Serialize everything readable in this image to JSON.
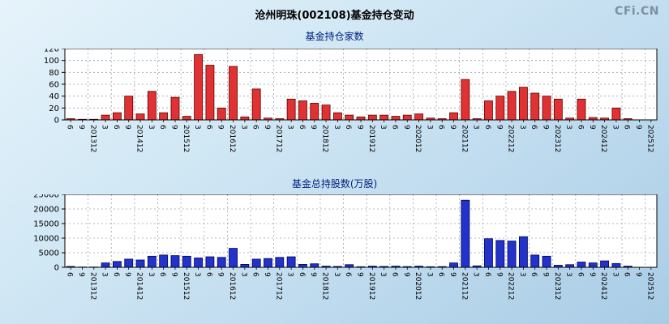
{
  "header": {
    "title": "沧州明珠(002108)基金持仓变动",
    "logo": "CFi.CN"
  },
  "chart_data": [
    {
      "type": "bar",
      "title": "基金持仓家数",
      "legend_position": "none",
      "grid": true,
      "ylim": [
        0,
        120
      ],
      "yticks": [
        0,
        20,
        40,
        60,
        80,
        100,
        120
      ],
      "bar_color": "#e03232",
      "bar_stroke": "#5a0000",
      "categories": [
        "6",
        "9",
        "201312",
        "3",
        "6",
        "9",
        "201412",
        "3",
        "6",
        "9",
        "201512",
        "3",
        "6",
        "9",
        "201612",
        "3",
        "6",
        "9",
        "201712",
        "3",
        "6",
        "9",
        "201812",
        "3",
        "6",
        "9",
        "201912",
        "3",
        "6",
        "9",
        "202012",
        "3",
        "6",
        "9",
        "202112",
        "3",
        "6",
        "9",
        "202212",
        "3",
        "6",
        "9",
        "202312",
        "3",
        "6",
        "9",
        "202412",
        "3",
        "6",
        "9",
        "202512"
      ],
      "values": [
        2,
        1,
        1,
        8,
        12,
        40,
        10,
        48,
        12,
        38,
        6,
        110,
        92,
        20,
        90,
        5,
        52,
        3,
        2,
        35,
        32,
        28,
        25,
        12,
        8,
        5,
        8,
        8,
        6,
        8,
        10,
        3,
        2,
        12,
        68,
        2,
        32,
        40,
        48,
        55,
        45,
        40,
        35,
        3,
        35,
        4,
        3,
        20,
        2,
        0,
        0
      ]
    },
    {
      "type": "bar",
      "title": "基金总持股数(万股)",
      "legend_position": "none",
      "grid": true,
      "ylim": [
        0,
        25000
      ],
      "yticks": [
        0,
        5000,
        10000,
        15000,
        20000,
        25000
      ],
      "bar_color": "#2233cc",
      "bar_stroke": "#000055",
      "categories": [
        "6",
        "9",
        "201312",
        "3",
        "6",
        "9",
        "201412",
        "3",
        "6",
        "9",
        "201512",
        "3",
        "6",
        "9",
        "201612",
        "3",
        "6",
        "9",
        "201712",
        "3",
        "6",
        "9",
        "201812",
        "3",
        "6",
        "9",
        "201912",
        "3",
        "6",
        "9",
        "202012",
        "3",
        "6",
        "9",
        "202112",
        "3",
        "6",
        "9",
        "202212",
        "3",
        "6",
        "9",
        "202312",
        "3",
        "6",
        "9",
        "202412",
        "3",
        "6",
        "9",
        "202512"
      ],
      "values": [
        300,
        100,
        100,
        1500,
        2000,
        2800,
        2500,
        3800,
        4200,
        4000,
        3800,
        3200,
        3600,
        3400,
        6500,
        1000,
        2800,
        3000,
        3400,
        3600,
        1000,
        1200,
        400,
        300,
        900,
        200,
        400,
        300,
        400,
        250,
        400,
        200,
        250,
        1500,
        23000,
        500,
        9800,
        9200,
        9000,
        10500,
        4200,
        3800,
        700,
        900,
        1800,
        1500,
        2200,
        1300,
        400,
        0,
        0
      ]
    }
  ]
}
